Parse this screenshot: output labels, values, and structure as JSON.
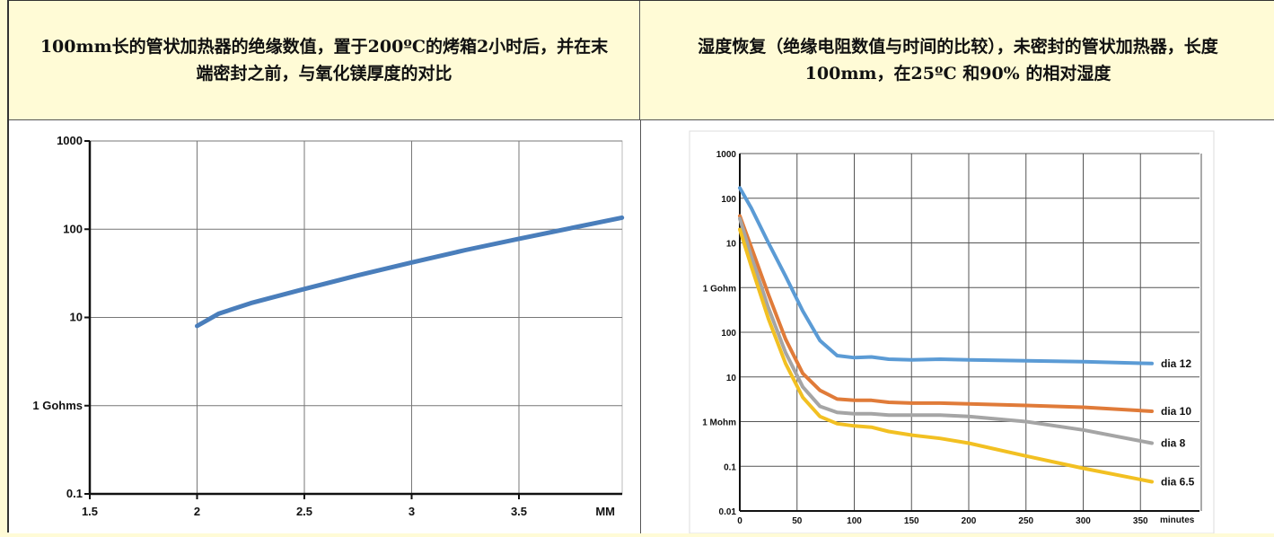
{
  "headers": {
    "left": "100mm长的管状加热器的绝缘数值，置于200ºC的烤箱2小时后，并在末端密封之前，与氧化镁厚度的对比",
    "right": "湿度恢复（绝缘电阻数值与时间的比较），未密封的管状加热器，长度100mm，在25ºC 和90% 的相对湿度"
  },
  "colors": {
    "background": "#fffbd6",
    "left_line": "#4a7ebb",
    "dia12": "#5b9bd5",
    "dia10": "#e07b39",
    "dia8": "#a5a5a5",
    "dia6_5": "#f2c022"
  },
  "chart_data": [
    {
      "type": "line",
      "scale_y": "log",
      "xlim": [
        1.5,
        3.5
      ],
      "x_ticks": [
        "1.5",
        "2",
        "2.5",
        "3",
        "3.5"
      ],
      "x_unit_label": "MM",
      "y_ticks": [
        "0.1",
        "1 Gohms",
        "10",
        "100",
        "1000"
      ],
      "y_tick_values": [
        0.1,
        1,
        10,
        100,
        1000
      ],
      "grid": true,
      "series": [
        {
          "x": [
            2.0,
            2.1,
            2.25,
            2.5,
            2.75,
            3.0,
            3.25,
            3.5,
            3.98
          ],
          "y": [
            8,
            11,
            14.5,
            21,
            30,
            42,
            58,
            78,
            135
          ]
        }
      ]
    },
    {
      "type": "line",
      "scale_y": "log",
      "xlim": [
        0,
        360
      ],
      "x_ticks": [
        "0",
        "50",
        "100",
        "150",
        "200",
        "250",
        "300",
        "350"
      ],
      "x_unit_label": "minutes",
      "y_ticks": [
        "0.01",
        "0.1",
        "1 Mohm",
        "10",
        "100",
        "1 Gohm",
        "10",
        "100",
        "1000"
      ],
      "y_tick_values": [
        0.01,
        0.1,
        1,
        10,
        100,
        1000,
        10000,
        100000,
        1000000
      ],
      "grid": true,
      "legend": "inline-right",
      "series": [
        {
          "name": "dia 12",
          "x": [
            0,
            10,
            25,
            40,
            55,
            70,
            85,
            100,
            115,
            130,
            150,
            175,
            200,
            250,
            300,
            360
          ],
          "y": [
            170000,
            60000,
            10000,
            1800,
            300,
            65,
            30,
            27,
            28,
            25,
            24,
            25,
            24,
            23,
            22,
            20
          ]
        },
        {
          "name": "dia 10",
          "x": [
            0,
            10,
            25,
            40,
            55,
            70,
            85,
            100,
            115,
            130,
            150,
            175,
            200,
            250,
            300,
            360
          ],
          "y": [
            40000,
            8000,
            700,
            70,
            12,
            5,
            3.2,
            3,
            3,
            2.7,
            2.6,
            2.6,
            2.5,
            2.3,
            2.1,
            1.7
          ]
        },
        {
          "name": "dia 8",
          "x": [
            0,
            10,
            25,
            40,
            55,
            70,
            85,
            100,
            115,
            130,
            150,
            175,
            200,
            250,
            300,
            360
          ],
          "y": [
            35000,
            5000,
            350,
            35,
            6,
            2.2,
            1.6,
            1.5,
            1.5,
            1.4,
            1.4,
            1.4,
            1.3,
            1,
            0.65,
            0.33
          ]
        },
        {
          "name": "dia 6.5",
          "x": [
            0,
            10,
            25,
            40,
            55,
            70,
            85,
            100,
            115,
            130,
            150,
            175,
            200,
            250,
            300,
            360
          ],
          "y": [
            20000,
            3000,
            200,
            20,
            3.5,
            1.3,
            0.9,
            0.8,
            0.75,
            0.6,
            0.5,
            0.42,
            0.33,
            0.17,
            0.09,
            0.045
          ]
        }
      ]
    }
  ]
}
